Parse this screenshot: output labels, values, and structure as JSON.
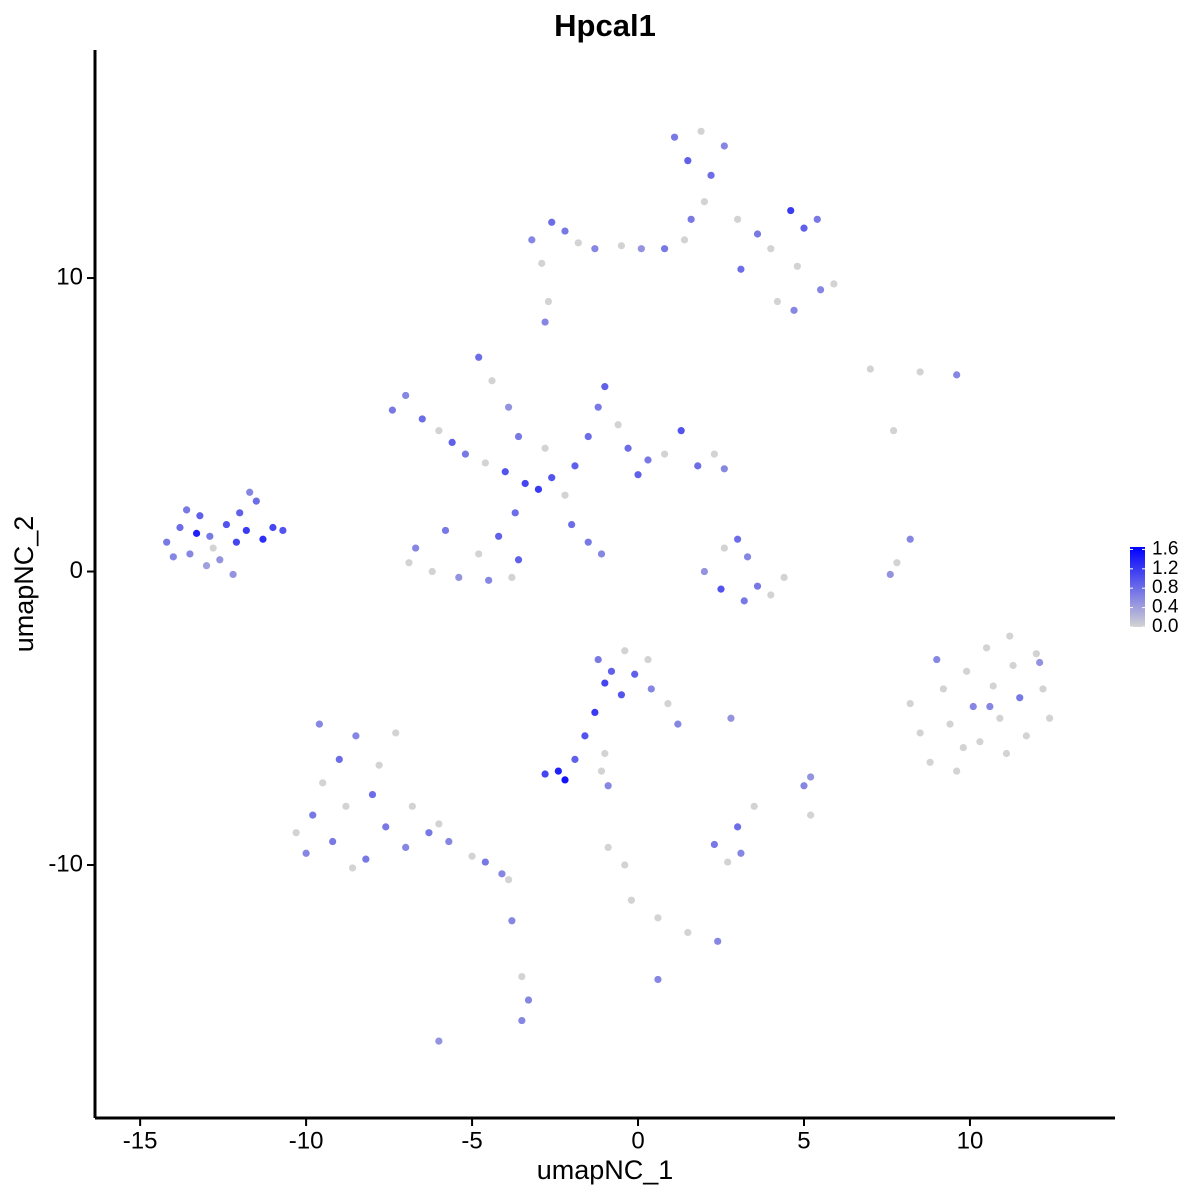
{
  "chart_data": {
    "type": "scatter",
    "title": "Hpcal1",
    "x_label": "umapNC_1",
    "y_label": "umapNC_2",
    "xlim": [
      -16.36,
      14.37
    ],
    "ylim": [
      -18.62,
      17.77
    ],
    "xticks": [
      -15,
      -10,
      -5,
      0,
      5,
      10
    ],
    "yticks": [
      -10,
      0,
      10
    ],
    "colorbar": {
      "lim": [
        0,
        1.65
      ],
      "colors": [
        "#d3d3d3",
        "#0000ff"
      ],
      "ticks": [
        1.6,
        1.2,
        0.8,
        0.4,
        {
          "value": 0,
          "label": "0.0"
        }
      ]
    },
    "x": [
      -14.2,
      -13.8,
      -13.5,
      -13.2,
      -12.9,
      -12.6,
      -12.4,
      -12.1,
      -11.8,
      -11.5,
      -11.3,
      -11.0,
      -10.7,
      -13.0,
      -12.2,
      -14.0,
      -13.6,
      -12.0,
      -11.7,
      -12.8,
      -13.3,
      -7.4,
      -7.0,
      -6.5,
      -6.0,
      -5.6,
      -5.2,
      -4.6,
      -4.0,
      -3.4,
      -3.0,
      -2.6,
      -2.2,
      -1.9,
      -1.5,
      -1.2,
      -1.0,
      -0.6,
      -0.3,
      0.3,
      0.8,
      1.3,
      1.8,
      2.3,
      2.6,
      -4.8,
      -4.4,
      -3.9,
      -3.6,
      -3.7,
      -4.2,
      -4.8,
      -5.4,
      -6.2,
      -6.7,
      -5.8,
      -4.5,
      -3.6,
      -3.8,
      -2.0,
      -1.5,
      -1.1,
      -6.9,
      -2.8,
      0.0,
      -3.2,
      -2.9,
      -2.6,
      -2.2,
      -1.8,
      -1.3,
      -0.5,
      0.1,
      0.8,
      1.4,
      1.1,
      1.5,
      1.9,
      2.2,
      2.6,
      2.0,
      3.0,
      3.6,
      4.0,
      4.6,
      5.0,
      5.4,
      3.1,
      4.8,
      5.5,
      5.9,
      4.7,
      4.2,
      -2.8,
      -2.7,
      1.6,
      2.6,
      3.0,
      3.3,
      3.6,
      4.0,
      4.4,
      2.0,
      2.5,
      3.2,
      7.0,
      8.5,
      9.6,
      7.7,
      8.2,
      7.8,
      7.6,
      8.2,
      8.5,
      8.8,
      9.2,
      9.4,
      9.6,
      9.9,
      10.1,
      10.3,
      10.5,
      10.7,
      10.9,
      11.1,
      11.3,
      11.5,
      11.7,
      12.0,
      12.2,
      12.4,
      10.6,
      11.2,
      9.0,
      12.1,
      9.8,
      -10.3,
      -10.0,
      -9.8,
      -9.5,
      -9.2,
      -9.0,
      -8.8,
      -8.5,
      -8.2,
      -8.0,
      -7.8,
      -7.6,
      -7.3,
      -7.0,
      -6.8,
      -6.3,
      -5.7,
      -5.0,
      -4.6,
      -4.1,
      -3.9,
      -9.6,
      -8.6,
      -6.0,
      -1.2,
      -0.8,
      -0.4,
      -1.0,
      -0.5,
      -0.1,
      0.3,
      0.4,
      0.9,
      1.2,
      -1.3,
      -1.6,
      -1.9,
      -2.4,
      -2.8,
      -2.2,
      -1.1,
      -0.9,
      2.8,
      5.0,
      5.2,
      3.0,
      3.5,
      2.3,
      3.1,
      2.7,
      0.6,
      -0.2,
      -0.4,
      -0.9,
      1.5,
      2.4,
      0.6,
      -3.5,
      -3.3,
      -3.5,
      -3.8,
      -6.0,
      -1.0,
      5.2
    ],
    "y": [
      1.0,
      1.5,
      0.6,
      1.9,
      1.2,
      0.4,
      1.6,
      1.0,
      1.4,
      2.4,
      1.1,
      1.5,
      1.4,
      0.2,
      -0.1,
      0.5,
      2.1,
      2.0,
      2.7,
      0.8,
      1.3,
      5.5,
      6.0,
      5.2,
      4.8,
      4.4,
      4.0,
      3.7,
      3.4,
      3.0,
      2.8,
      3.2,
      2.6,
      3.6,
      4.6,
      5.6,
      6.3,
      5.0,
      4.2,
      3.8,
      4.0,
      4.8,
      3.6,
      4.0,
      3.5,
      7.3,
      6.5,
      5.6,
      4.6,
      2.0,
      1.2,
      0.6,
      -0.2,
      0.0,
      0.8,
      1.4,
      -0.3,
      0.4,
      -0.2,
      1.6,
      1.0,
      0.6,
      0.3,
      4.2,
      3.3,
      11.3,
      10.5,
      11.9,
      11.6,
      11.2,
      11.0,
      11.1,
      11.0,
      11.0,
      11.3,
      14.8,
      14.0,
      15.0,
      13.5,
      14.5,
      12.6,
      12.0,
      11.5,
      11.0,
      12.3,
      11.7,
      12.0,
      10.3,
      10.4,
      9.6,
      9.8,
      8.9,
      9.2,
      8.5,
      9.2,
      12.0,
      0.8,
      1.1,
      0.5,
      -0.5,
      -0.8,
      -0.2,
      0.0,
      -0.6,
      -1.0,
      6.9,
      6.8,
      6.7,
      4.8,
      1.1,
      0.3,
      -0.1,
      -4.5,
      -5.5,
      -6.5,
      -4.0,
      -5.2,
      -6.8,
      -3.4,
      -4.6,
      -5.8,
      -2.6,
      -3.9,
      -5.0,
      -6.2,
      -3.2,
      -4.3,
      -5.6,
      -2.8,
      -4.0,
      -5.0,
      -4.6,
      -2.2,
      -3.0,
      -3.1,
      -6.0,
      -8.9,
      -9.6,
      -8.3,
      -7.2,
      -9.2,
      -6.4,
      -8.0,
      -5.6,
      -9.8,
      -7.6,
      -6.6,
      -8.7,
      -5.5,
      -9.4,
      -8.0,
      -8.9,
      -9.2,
      -9.7,
      -9.9,
      -10.3,
      -10.5,
      -5.2,
      -10.1,
      -8.6,
      -3.0,
      -3.4,
      -2.7,
      -3.8,
      -4.2,
      -3.5,
      -3.0,
      -4.0,
      -4.5,
      -5.2,
      -4.8,
      -5.6,
      -6.4,
      -6.8,
      -6.9,
      -7.1,
      -6.8,
      -7.3,
      -5.0,
      -7.3,
      -7.0,
      -8.7,
      -8.0,
      -9.3,
      -9.6,
      -9.9,
      -11.8,
      -11.2,
      -10.0,
      -9.4,
      -12.3,
      -12.6,
      -13.9,
      -13.8,
      -14.6,
      -15.3,
      -11.9,
      -16.0,
      -6.2,
      -8.3
    ],
    "expression": [
      0.7,
      0.8,
      0.6,
      0.9,
      0.7,
      0.5,
      1.0,
      1.1,
      1.2,
      0.8,
      1.3,
      1.1,
      1.0,
      0.4,
      0.5,
      0.6,
      0.7,
      0.9,
      0.6,
      0.0,
      1.4,
      0.7,
      0.6,
      0.8,
      0.0,
      0.9,
      0.7,
      0.0,
      1.0,
      1.1,
      1.2,
      1.0,
      0.0,
      0.9,
      0.8,
      0.7,
      0.9,
      0.0,
      0.8,
      0.7,
      0.0,
      1.0,
      0.8,
      0.0,
      0.6,
      0.8,
      0.0,
      0.5,
      0.7,
      0.8,
      0.9,
      0.0,
      0.5,
      0.0,
      0.6,
      0.7,
      0.6,
      0.9,
      0.0,
      0.8,
      0.7,
      0.6,
      0.0,
      0.0,
      0.9,
      0.6,
      0.0,
      0.8,
      0.7,
      0.0,
      0.6,
      0.0,
      0.5,
      0.7,
      0.0,
      0.7,
      0.9,
      0.0,
      0.8,
      0.6,
      0.0,
      0.0,
      0.7,
      0.0,
      1.2,
      0.9,
      0.7,
      0.8,
      0.0,
      0.6,
      0.0,
      0.6,
      0.0,
      0.6,
      0.0,
      0.7,
      0.0,
      0.8,
      0.6,
      0.7,
      0.0,
      0.0,
      0.5,
      1.0,
      0.7,
      0.0,
      0.0,
      0.6,
      0.0,
      0.6,
      0.0,
      0.5,
      0.0,
      0.0,
      0.0,
      0.0,
      0.0,
      0.0,
      0.0,
      0.6,
      0.0,
      0.0,
      0.0,
      0.0,
      0.0,
      0.0,
      0.7,
      0.0,
      0.0,
      0.0,
      0.0,
      0.6,
      0.0,
      0.6,
      0.5,
      0.0,
      0.0,
      0.6,
      0.7,
      0.0,
      0.7,
      0.8,
      0.0,
      0.6,
      0.7,
      0.8,
      0.0,
      0.7,
      0.0,
      0.6,
      0.0,
      0.7,
      0.6,
      0.0,
      0.7,
      0.6,
      0.0,
      0.6,
      0.0,
      0.0,
      0.7,
      0.9,
      0.0,
      1.1,
      1.0,
      0.9,
      0.0,
      0.6,
      0.0,
      0.6,
      1.2,
      1.0,
      0.9,
      1.4,
      1.1,
      1.5,
      0.0,
      0.6,
      0.5,
      0.6,
      0.5,
      0.8,
      0.0,
      0.7,
      0.6,
      0.0,
      0.0,
      0.0,
      0.0,
      0.0,
      0.0,
      0.6,
      0.6,
      0.0,
      0.6,
      0.6,
      0.6,
      0.5,
      0.0,
      0.0
    ]
  }
}
